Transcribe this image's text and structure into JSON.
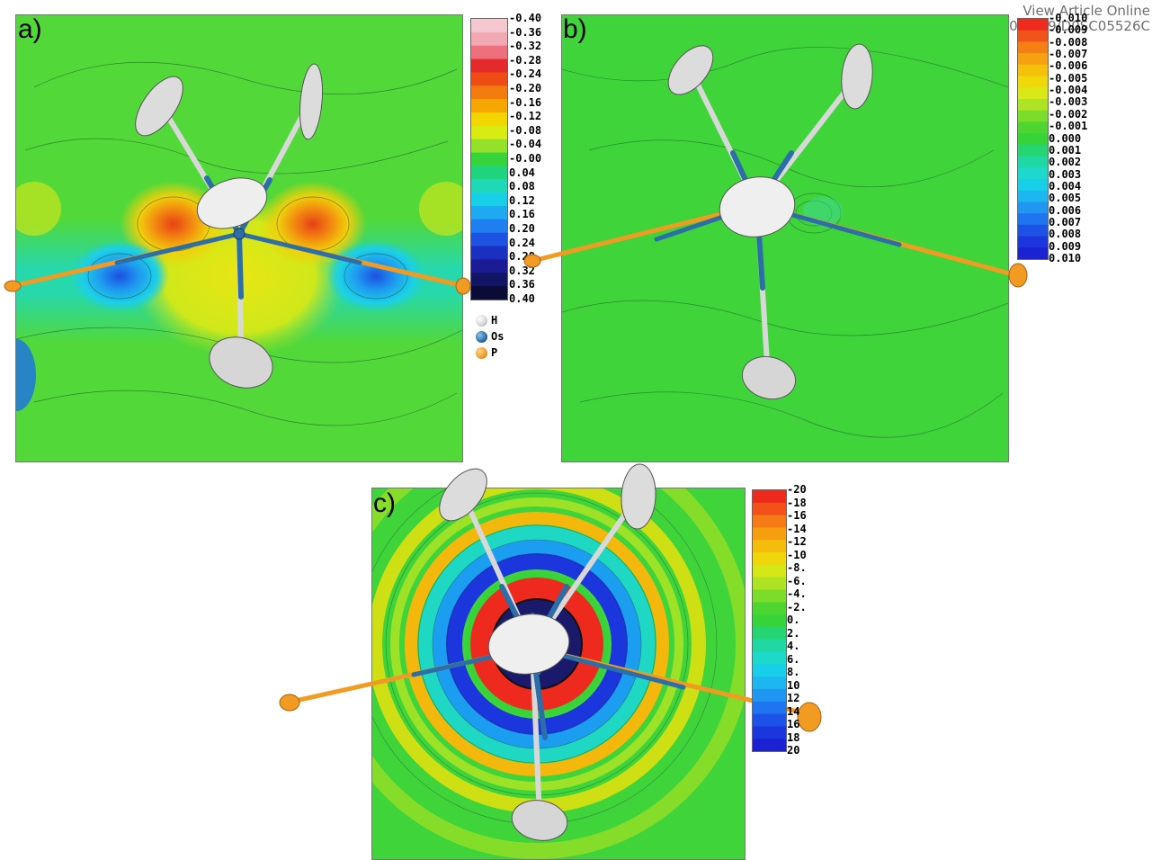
{
  "header": {
    "line1": "View Article Online",
    "line2": "DOI: 10.1039/D0SC05526C"
  },
  "panels": [
    {
      "label": "a)",
      "colorbar": {
        "ticks": [
          "-0.40",
          "-0.36",
          "-0.32",
          "-0.28",
          "-0.24",
          "-0.20",
          "-0.16",
          "-0.12",
          "-0.08",
          "-0.04",
          "-0.00",
          "0.04",
          "0.08",
          "0.12",
          "0.16",
          "0.20",
          "0.24",
          "0.28",
          "0.32",
          "0.36",
          "0.40"
        ],
        "colors": [
          "#f5c7cf",
          "#f3a9b4",
          "#ef6f7c",
          "#e42a2a",
          "#ee4b15",
          "#f27c10",
          "#f5a700",
          "#f3d600",
          "#d8ec14",
          "#93e12a",
          "#36d43a",
          "#20d47e",
          "#1fd8b8",
          "#17d0e8",
          "#1fa9f0",
          "#1f7ef0",
          "#1d52e3",
          "#1b2fc0",
          "#1b1b95",
          "#121464",
          "#0b0b38"
        ]
      },
      "legend": [
        {
          "symbol": "H",
          "color": "#d4d4d8"
        },
        {
          "symbol": "Os",
          "color": "#2c6ea7"
        },
        {
          "symbol": "P",
          "color": "#f29b22"
        }
      ]
    },
    {
      "label": "b)",
      "colorbar": {
        "ticks": [
          "-0.010",
          "-0.009",
          "-0.008",
          "-0.007",
          "-0.006",
          "-0.005",
          "-0.004",
          "-0.003",
          "-0.002",
          "-0.001",
          "0.000",
          "0.001",
          "0.002",
          "0.003",
          "0.004",
          "0.005",
          "0.006",
          "0.007",
          "0.008",
          "0.009",
          "0.010"
        ],
        "colors": [
          "#ef2a1e",
          "#f2531a",
          "#f57e15",
          "#f6a10f",
          "#f5c00a",
          "#efd90b",
          "#d9e817",
          "#aee323",
          "#7bdc2a",
          "#4ed531",
          "#36d438",
          "#25d572",
          "#1fd8a3",
          "#1cd9cc",
          "#18cfea",
          "#1cb6f0",
          "#1f96f0",
          "#1f74ef",
          "#1d52e6",
          "#1a36dc",
          "#1a22d4"
        ]
      }
    },
    {
      "label": "c)",
      "colorbar": {
        "ticks": [
          "-20",
          "-18",
          "-16",
          "-14",
          "-12",
          "-10",
          "-8.",
          "-6.",
          "-4.",
          "-2.",
          "0.",
          "2.",
          "4.",
          "6.",
          "8.",
          "10",
          "12",
          "14",
          "16",
          "18",
          "20"
        ],
        "colors": [
          "#ee2a1e",
          "#f2511a",
          "#f47b15",
          "#f59e10",
          "#f5bd0b",
          "#efd70b",
          "#d5e717",
          "#aee323",
          "#7bdc2a",
          "#4ed531",
          "#36d438",
          "#25d572",
          "#1fd8a3",
          "#1cd9cc",
          "#18cfea",
          "#1cb6f0",
          "#1f96f0",
          "#1f74ef",
          "#1d52e6",
          "#1a36dc",
          "#1a22d4"
        ]
      }
    }
  ]
}
